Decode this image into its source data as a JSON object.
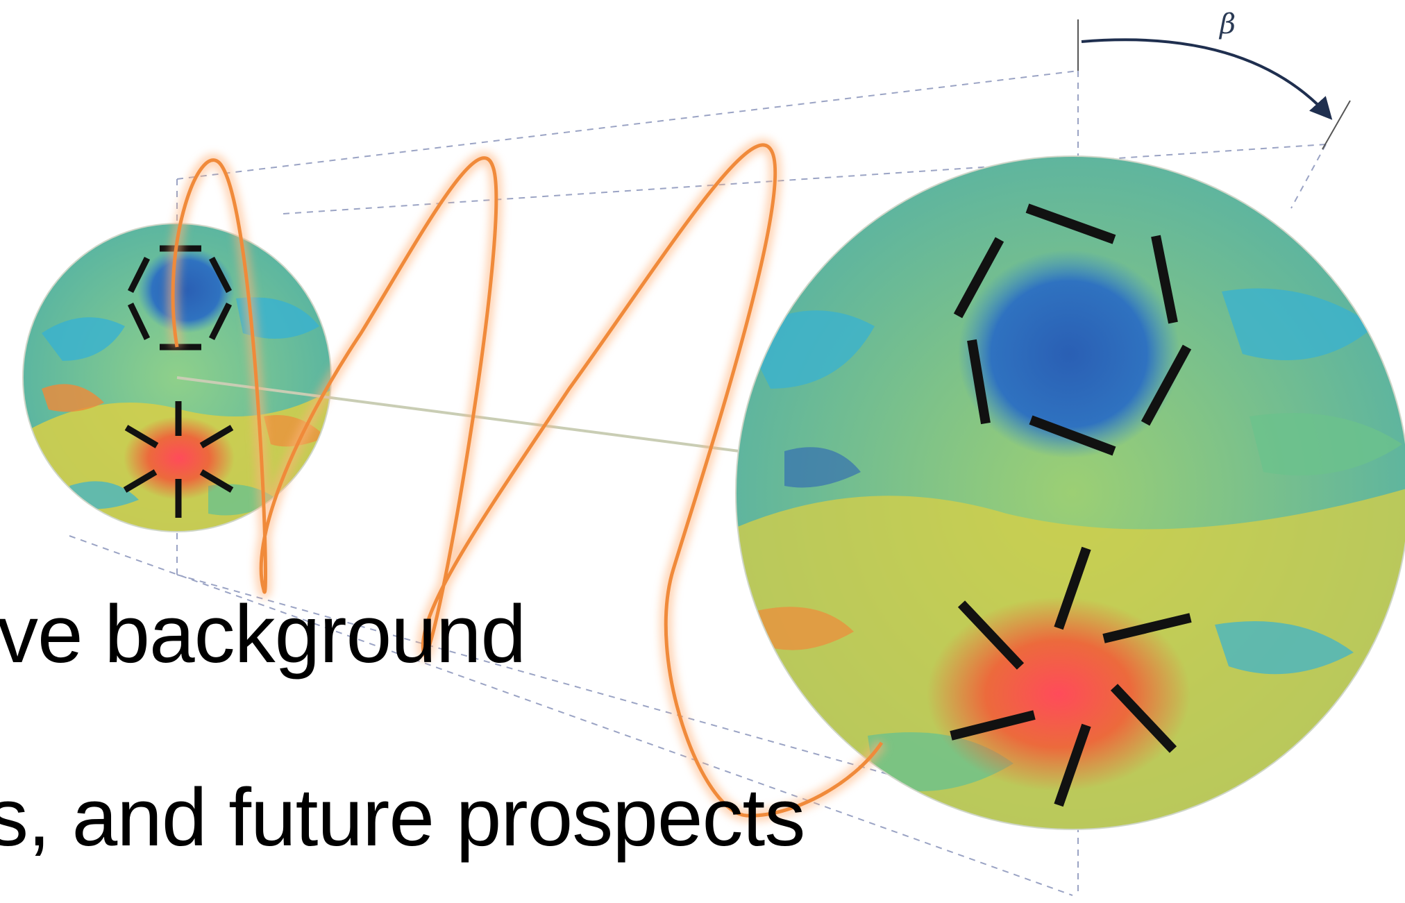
{
  "slide": {
    "line1": "ve background",
    "line2": "s, and future prospects"
  },
  "diagram": {
    "rotation_label": "β",
    "colors": {
      "beam": "#f08a3a",
      "beam_glow": "#ffb27a",
      "guide_dash": "#9aa3c4",
      "axis": "#c9cdb4",
      "arrow": "#1f2f4f",
      "stick": "#111111",
      "map_blue": "#2b63b6",
      "map_cyan": "#38b2d1",
      "map_green": "#6cc28c",
      "map_yellow": "#d8cf46",
      "map_orange": "#ef8a3a",
      "map_red": "#e24848"
    }
  }
}
